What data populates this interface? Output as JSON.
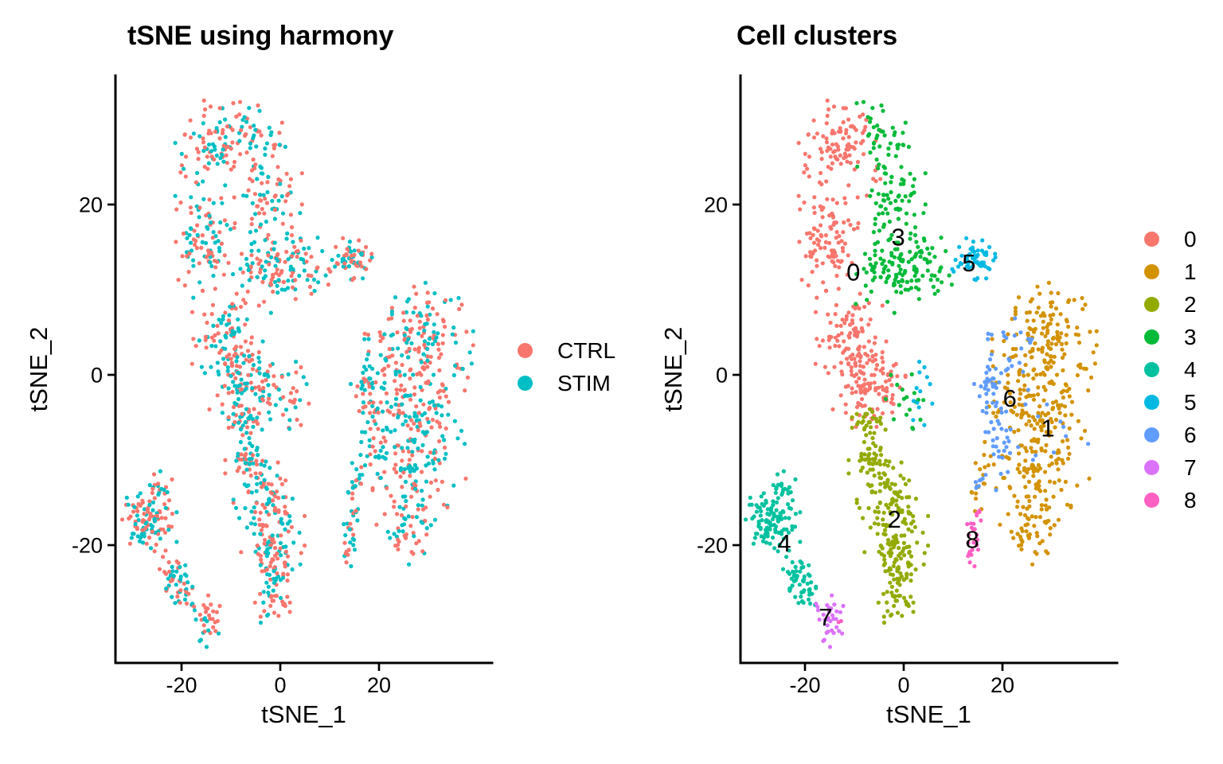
{
  "figure": {
    "background": "#ffffff",
    "axis_color": "#000000",
    "text_color": "#000000"
  },
  "chart_data": [
    {
      "type": "scatter",
      "title": "tSNE using harmony",
      "xlabel": "tSNE_1",
      "ylabel": "tSNE_2",
      "xlim": [
        -33,
        43
      ],
      "ylim": [
        -34,
        35
      ],
      "xticks": [
        -20,
        0,
        20
      ],
      "yticks": [
        -20,
        0,
        20
      ],
      "grid": false,
      "legend_position": "right",
      "color_by": "condition",
      "point_radius_px": 2.6,
      "conditions": [
        {
          "label": "CTRL",
          "color": "#F8766D",
          "fraction": 0.54
        },
        {
          "label": "STIM",
          "color": "#00BFC4",
          "fraction": 0.46
        }
      ],
      "note": "same tSNE embedding as the Cell clusters panel, points colored by condition"
    },
    {
      "type": "scatter",
      "title": "Cell clusters",
      "xlabel": "tSNE_1",
      "ylabel": "tSNE_2",
      "xlim": [
        -33,
        43
      ],
      "ylim": [
        -34,
        35
      ],
      "xticks": [
        -20,
        0,
        20
      ],
      "yticks": [
        -20,
        0,
        20
      ],
      "grid": false,
      "legend_position": "right",
      "color_by": "cluster",
      "point_radius_px": 2.6,
      "seed": 13,
      "clusters": [
        {
          "label": "0",
          "color": "#F8766D",
          "label_pos": [
            -10.2,
            12.1
          ],
          "blobs": [
            [
              -13,
              26.5,
              3.6,
              2.6,
              105
            ],
            [
              -15.5,
              15.5,
              3.0,
              2.8,
              95
            ],
            [
              -10.5,
              4,
              3.2,
              2.4,
              100
            ],
            [
              -7,
              -1.5,
              3.2,
              2.0,
              100
            ]
          ]
        },
        {
          "label": "1",
          "color": "#D39200",
          "label_pos": [
            29.2,
            -6.2
          ],
          "blobs": [
            [
              30,
              6.5,
              3.2,
              2.2,
              70
            ],
            [
              28.5,
              1.5,
              4.6,
              2.2,
              85
            ],
            [
              27.5,
              -4,
              5.2,
              2.4,
              95
            ],
            [
              27,
              -10,
              4.6,
              2.4,
              85
            ],
            [
              26.5,
              -15.5,
              3.2,
              2.0,
              55
            ],
            [
              25.5,
              -19.5,
              1.6,
              1.2,
              20
            ],
            [
              15.6,
              -14,
              0.9,
              2.0,
              14
            ]
          ]
        },
        {
          "label": "2",
          "color": "#93AA00",
          "label_pos": [
            -1.9,
            -16.9
          ],
          "blobs": [
            [
              -7,
              -5.8,
              1.5,
              1.2,
              30
            ],
            [
              -7,
              -10,
              1.8,
              1.6,
              40
            ],
            [
              -3.5,
              -14.5,
              2.6,
              2.2,
              70
            ],
            [
              -1.5,
              -18.5,
              2.8,
              2.2,
              65
            ],
            [
              -1,
              -22.5,
              2.2,
              2.0,
              50
            ],
            [
              -1.5,
              -26.5,
              1.5,
              1.5,
              30
            ]
          ]
        },
        {
          "label": "3",
          "color": "#00BA38",
          "label_pos": [
            -1.1,
            16.2
          ],
          "blobs": [
            [
              -4,
              28.5,
              2.4,
              2.0,
              35
            ],
            [
              -2.5,
              21.5,
              3.0,
              2.4,
              65
            ],
            [
              -1,
              12.8,
              4.2,
              2.4,
              115
            ],
            [
              5.5,
              11.8,
              2.0,
              1.4,
              25
            ],
            [
              0,
              -3,
              2.0,
              2.2,
              18
            ]
          ]
        },
        {
          "label": "4",
          "color": "#00C19F",
          "label_pos": [
            -24.2,
            -19.7
          ],
          "blobs": [
            [
              -26.5,
              -17,
              2.4,
              1.9,
              110
            ],
            [
              -25,
              -13.5,
              1.5,
              1.0,
              15
            ],
            [
              -21.5,
              -23.5,
              1.6,
              1.3,
              35
            ],
            [
              -19,
              -25.8,
              1.0,
              0.8,
              18
            ]
          ]
        },
        {
          "label": "5",
          "color": "#00B9E3",
          "label_pos": [
            13.2,
            13.2
          ],
          "blobs": [
            [
              14.2,
              13.3,
              1.9,
              1.2,
              62
            ],
            [
              3,
              -2.5,
              1.6,
              2.0,
              13
            ]
          ]
        },
        {
          "label": "6",
          "color": "#619CFF",
          "label_pos": [
            21.5,
            -2.7
          ],
          "blobs": [
            [
              17.5,
              -1.5,
              1.4,
              2.8,
              42
            ],
            [
              19.5,
              -9,
              1.6,
              2.2,
              22
            ],
            [
              22,
              4,
              2.2,
              2.0,
              16
            ],
            [
              27,
              -6,
              4.5,
              4.0,
              16
            ],
            [
              15.4,
              -12.5,
              0.7,
              1.4,
              8
            ]
          ]
        },
        {
          "label": "7",
          "color": "#DB72FB",
          "label_pos": [
            -15.8,
            -28.4
          ],
          "blobs": [
            [
              -15.2,
              -28.5,
              1.4,
              1.5,
              32
            ]
          ]
        },
        {
          "label": "8",
          "color": "#FF61C3",
          "label_pos": [
            13.9,
            -19.3
          ],
          "blobs": [
            [
              14,
              -19.5,
              0.9,
              1.3,
              22
            ],
            [
              15.2,
              -16.8,
              0.5,
              0.8,
              4
            ],
            [
              -12.9,
              -29,
              0.3,
              0.3,
              2
            ]
          ]
        }
      ]
    }
  ]
}
